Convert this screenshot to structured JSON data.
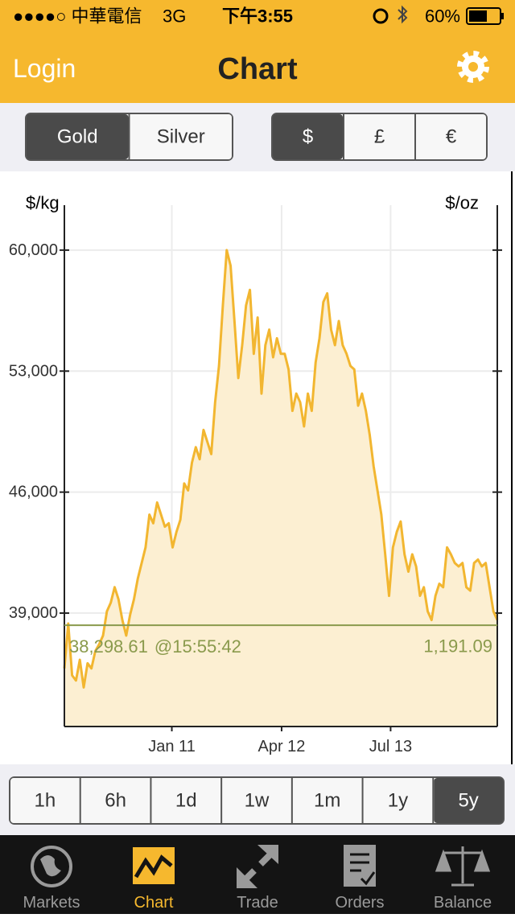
{
  "status_bar": {
    "carrier": "●●●●○ 中華電信",
    "network": "3G",
    "time": "下午3:55",
    "battery": "60%"
  },
  "nav": {
    "left": "Login",
    "title": "Chart"
  },
  "metal_toggle": {
    "options": [
      "Gold",
      "Silver"
    ],
    "selected": 0
  },
  "currency_toggle": {
    "options": [
      "$",
      "£",
      "€"
    ],
    "selected": 0
  },
  "chart_data": {
    "type": "area-line",
    "y_label": "$/kg",
    "y2_label": "$/oz",
    "color": "#f2b630",
    "fill_color": "#fcefd2",
    "grid": true,
    "xlim": [
      0,
      112
    ],
    "xticks": [
      {
        "value": 27.8,
        "label": "Jan 11"
      },
      {
        "value": 56.2,
        "label": "Apr 12"
      },
      {
        "value": 84.4,
        "label": "Jul 13"
      }
    ],
    "ylim": [
      32440,
      62600
    ],
    "yticks": [
      {
        "value": 39000,
        "label": "39,000"
      },
      {
        "value": 46000,
        "label": "46,000"
      },
      {
        "value": 53000,
        "label": "53,000"
      },
      {
        "value": 60000,
        "label": "60,000"
      }
    ],
    "values": [
      35800,
      38400,
      35400,
      35100,
      36300,
      34700,
      36100,
      35800,
      36800,
      37200,
      37700,
      39100,
      39600,
      40500,
      39800,
      38600,
      37700,
      38900,
      39800,
      41000,
      41900,
      42800,
      44700,
      44200,
      45400,
      44700,
      44000,
      44200,
      42800,
      43700,
      44400,
      46500,
      46100,
      47700,
      48600,
      47900,
      49600,
      48900,
      48200,
      51200,
      53300,
      56800,
      60000,
      59100,
      55900,
      52600,
      54500,
      56800,
      57700,
      54000,
      56100,
      51700,
      54500,
      55400,
      53800,
      54900,
      54000,
      54000,
      53100,
      50700,
      51700,
      51200,
      49800,
      51700,
      50700,
      53500,
      54900,
      57000,
      57500,
      55400,
      54500,
      55900,
      54500,
      54000,
      53300,
      53100,
      51000,
      51700,
      50700,
      49300,
      47500,
      46100,
      44700,
      42400,
      40000,
      42800,
      43700,
      44300,
      42400,
      41400,
      42400,
      41700,
      40000,
      40500,
      39100,
      38600,
      40000,
      40700,
      40500,
      42800,
      42400,
      41900,
      41700,
      41900,
      40500,
      40300,
      41900,
      42100,
      41700,
      41900,
      40500,
      39100,
      38600
    ],
    "current": {
      "price": {
        "value": 38298.61,
        "label": "38,298.61"
      },
      "time": "@15:55:42",
      "price_oz": {
        "value": 1191.09,
        "label": "1,191.09"
      },
      "color": "#8a9a4c"
    }
  },
  "range_buttons": {
    "options": [
      "1h",
      "6h",
      "1d",
      "1w",
      "1m",
      "1y",
      "5y"
    ],
    "selected": 6
  },
  "tab_bar": {
    "tabs": [
      "Markets",
      "Chart",
      "Trade",
      "Orders",
      "Balance"
    ],
    "selected": 1
  }
}
